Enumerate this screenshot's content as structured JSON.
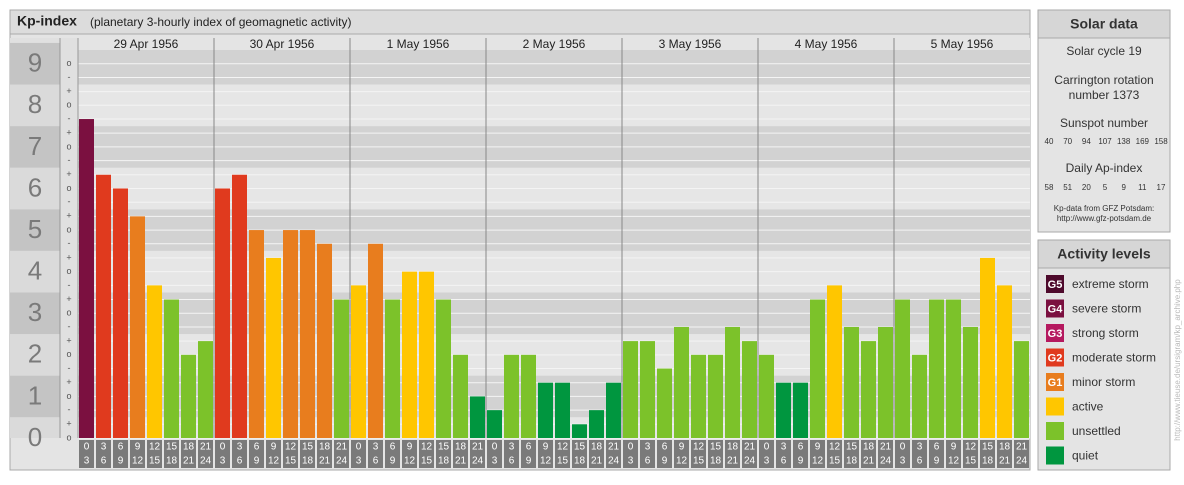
{
  "chart_data": {
    "type": "bar",
    "title": "Kp-index",
    "subtitle": "(planetary 3-hourly index of geomagnetic activity)",
    "ylim": [
      0,
      9.33
    ],
    "yticks": [
      0,
      1,
      2,
      3,
      4,
      5,
      6,
      7,
      8,
      9
    ],
    "minor_ticks": [
      {
        "value": 0,
        "label": "o"
      },
      {
        "value": 0.33,
        "label": "+"
      },
      {
        "value": 0.67,
        "label": "-"
      },
      {
        "value": 1,
        "label": "o"
      },
      {
        "value": 1.33,
        "label": "+"
      },
      {
        "value": 1.67,
        "label": "-"
      },
      {
        "value": 2,
        "label": "o"
      },
      {
        "value": 2.33,
        "label": "+"
      },
      {
        "value": 2.67,
        "label": "-"
      },
      {
        "value": 3,
        "label": "o"
      },
      {
        "value": 3.33,
        "label": "+"
      },
      {
        "value": 3.67,
        "label": "-"
      },
      {
        "value": 4,
        "label": "o"
      },
      {
        "value": 4.33,
        "label": "+"
      },
      {
        "value": 4.67,
        "label": "-"
      },
      {
        "value": 5,
        "label": "o"
      },
      {
        "value": 5.33,
        "label": "+"
      },
      {
        "value": 5.67,
        "label": "-"
      },
      {
        "value": 6,
        "label": "o"
      },
      {
        "value": 6.33,
        "label": "+"
      },
      {
        "value": 6.67,
        "label": "-"
      },
      {
        "value": 7,
        "label": "o"
      },
      {
        "value": 7.33,
        "label": "+"
      },
      {
        "value": 7.67,
        "label": "-"
      },
      {
        "value": 8,
        "label": "o"
      },
      {
        "value": 8.33,
        "label": "+"
      },
      {
        "value": 8.67,
        "label": "-"
      },
      {
        "value": 9,
        "label": "o"
      }
    ],
    "hours": [
      0,
      3,
      6,
      9,
      12,
      15,
      18,
      21,
      24
    ],
    "days": [
      {
        "date": "29 Apr 1956",
        "values": [
          7.67,
          6.33,
          6,
          5.33,
          3.67,
          3.33,
          2,
          2.33
        ],
        "colors": [
          "#7b1040",
          "#e03a1e",
          "#e03a1e",
          "#e87d1e",
          "#ffc600",
          "#7cc22a",
          "#7cc22a",
          "#7cc22a"
        ]
      },
      {
        "date": "30 Apr 1956",
        "values": [
          6,
          6.33,
          5,
          4.33,
          5,
          5,
          4.67,
          3.33
        ],
        "colors": [
          "#e03a1e",
          "#e03a1e",
          "#e87d1e",
          "#ffc600",
          "#e87d1e",
          "#e87d1e",
          "#e87d1e",
          "#7cc22a"
        ]
      },
      {
        "date": "1 May 1956",
        "values": [
          3.67,
          4.67,
          3.33,
          4,
          4,
          3.33,
          2,
          1
        ],
        "colors": [
          "#ffc600",
          "#e87d1e",
          "#7cc22a",
          "#ffc600",
          "#ffc600",
          "#7cc22a",
          "#7cc22a",
          "#00963f"
        ]
      },
      {
        "date": "2 May 1956",
        "values": [
          0.67,
          2,
          2,
          1.33,
          1.33,
          0.33,
          0.67,
          1.33
        ],
        "colors": [
          "#00963f",
          "#7cc22a",
          "#7cc22a",
          "#00963f",
          "#00963f",
          "#00963f",
          "#00963f",
          "#00963f"
        ]
      },
      {
        "date": "3 May 1956",
        "values": [
          2.33,
          2.33,
          1.67,
          2.67,
          2,
          2,
          2.67,
          2.33
        ],
        "colors": [
          "#7cc22a",
          "#7cc22a",
          "#7cc22a",
          "#7cc22a",
          "#7cc22a",
          "#7cc22a",
          "#7cc22a",
          "#7cc22a"
        ]
      },
      {
        "date": "4 May 1956",
        "values": [
          2,
          1.33,
          1.33,
          3.33,
          3.67,
          2.67,
          2.33,
          2.67
        ],
        "colors": [
          "#7cc22a",
          "#00963f",
          "#00963f",
          "#7cc22a",
          "#ffc600",
          "#7cc22a",
          "#7cc22a",
          "#7cc22a"
        ]
      },
      {
        "date": "5 May 1956",
        "values": [
          3.33,
          2,
          3.33,
          3.33,
          2.67,
          4.33,
          3.67,
          2.33
        ],
        "colors": [
          "#7cc22a",
          "#7cc22a",
          "#7cc22a",
          "#7cc22a",
          "#7cc22a",
          "#ffc600",
          "#ffc600",
          "#7cc22a"
        ]
      }
    ]
  },
  "solar_data": {
    "title": "Solar data",
    "cycle": "Solar cycle 19",
    "carrington": [
      "Carrington rotation",
      "number 1373"
    ],
    "sunspot_title": "Sunspot number",
    "sunspot": [
      40,
      70,
      94,
      107,
      138,
      169,
      158
    ],
    "ap_title": "Daily Ap-index",
    "ap": [
      58,
      51,
      20,
      5,
      9,
      11,
      17
    ],
    "source": [
      "Kp-data from GFZ Potsdam:",
      "http://www.gfz-potsdam.de"
    ]
  },
  "activity_levels": {
    "title": "Activity levels",
    "items": [
      {
        "badge": "G5",
        "label": "extreme storm",
        "color": "#4e0a2c"
      },
      {
        "badge": "G4",
        "label": "severe storm",
        "color": "#7b1040"
      },
      {
        "badge": "G3",
        "label": "strong storm",
        "color": "#b5195f"
      },
      {
        "badge": "G2",
        "label": "moderate storm",
        "color": "#e03a1e"
      },
      {
        "badge": "G1",
        "label": "minor storm",
        "color": "#e87d1e"
      },
      {
        "label": "active",
        "color": "#ffc600"
      },
      {
        "label": "unsettled",
        "color": "#7cc22a"
      },
      {
        "label": "quiet",
        "color": "#00963f"
      }
    ]
  },
  "side_url": "http://www.tieuse.de/ursigram/kp_archive.php"
}
